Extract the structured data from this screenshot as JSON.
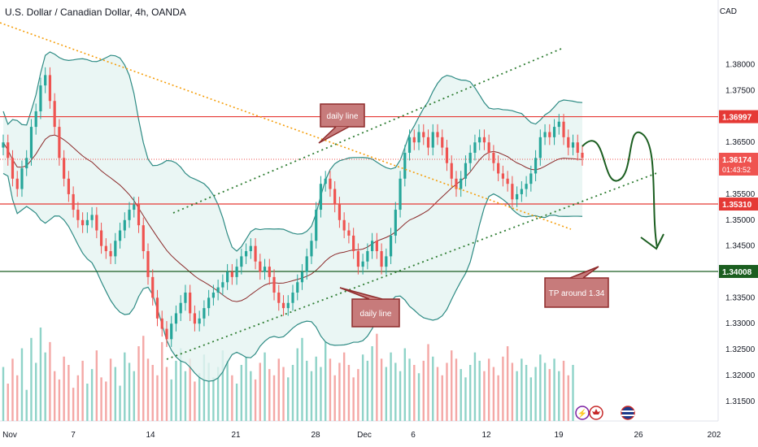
{
  "header": {
    "symbol_title": "U.S. Dollar / Canadian Dollar, 4h, OANDA",
    "currency": "CAD"
  },
  "colors": {
    "up": "#26a69a",
    "down": "#ef5350",
    "band": "#2e8b84",
    "band_fill": "#e5f4f1",
    "ma": "#8b2a2a",
    "resistance": "#e53935",
    "target": "#1b5e20",
    "downtrend": "#f59e0b",
    "channel": "#2e7d32",
    "callout_fill": "#c77b7b",
    "callout_border": "#8e2b2b"
  },
  "chart_data": {
    "type": "line",
    "ylim": [
      1.3112,
      1.3925
    ],
    "price_axis_ticks": [
      "1.38000",
      "1.37500",
      "1.37000",
      "1.36500",
      "1.36000",
      "1.35500",
      "1.35000",
      "1.34500",
      "1.34000",
      "1.33500",
      "1.33000",
      "1.32500",
      "1.32000",
      "1.31500"
    ],
    "x_tick_labels": [
      "Nov",
      "7",
      "14",
      "21",
      "28",
      "Dec",
      "6",
      "12",
      "19",
      "26",
      "202"
    ],
    "horizontal_levels": [
      {
        "label": "1.36997",
        "value": 1.36997,
        "color": "#e53935"
      },
      {
        "label": "1.35310",
        "value": 1.3531,
        "color": "#e53935"
      },
      {
        "label": "1.34008",
        "value": 1.34008,
        "color": "#1b5e20"
      }
    ],
    "current_price": {
      "label": "1.36174",
      "value": 1.36174,
      "countdown": "01:43:52"
    },
    "close_series": [
      1.365,
      1.362,
      1.358,
      1.356,
      1.36,
      1.362,
      1.368,
      1.371,
      1.376,
      1.378,
      1.373,
      1.368,
      1.362,
      1.358,
      1.355,
      1.352,
      1.35,
      1.349,
      1.35,
      1.351,
      1.348,
      1.345,
      1.344,
      1.343,
      1.346,
      1.348,
      1.35,
      1.352,
      1.353,
      1.349,
      1.344,
      1.339,
      1.335,
      1.331,
      1.329,
      1.327,
      1.33,
      1.332,
      1.334,
      1.336,
      1.332,
      1.33,
      1.331,
      1.333,
      1.335,
      1.336,
      1.337,
      1.338,
      1.34,
      1.339,
      1.341,
      1.343,
      1.344,
      1.345,
      1.342,
      1.34,
      1.341,
      1.339,
      1.336,
      1.334,
      1.333,
      1.334,
      1.336,
      1.338,
      1.34,
      1.343,
      1.346,
      1.352,
      1.357,
      1.358,
      1.356,
      1.353,
      1.35,
      1.348,
      1.347,
      1.344,
      1.341,
      1.342,
      1.344,
      1.346,
      1.344,
      1.341,
      1.343,
      1.347,
      1.352,
      1.358,
      1.363,
      1.366,
      1.365,
      1.367,
      1.366,
      1.364,
      1.367,
      1.366,
      1.364,
      1.361,
      1.358,
      1.356,
      1.358,
      1.361,
      1.363,
      1.365,
      1.366,
      1.365,
      1.363,
      1.361,
      1.359,
      1.358,
      1.357,
      1.354,
      1.355,
      1.356,
      1.357,
      1.359,
      1.362,
      1.366,
      1.367,
      1.366,
      1.368,
      1.369,
      1.366,
      1.364,
      1.365,
      1.363,
      1.362
    ],
    "volume_series": [
      26,
      18,
      30,
      22,
      35,
      15,
      40,
      28,
      45,
      33,
      38,
      24,
      20,
      31,
      27,
      16,
      22,
      29,
      18,
      25,
      34,
      21,
      19,
      30,
      26,
      17,
      33,
      28,
      24,
      36,
      41,
      30,
      27,
      22,
      38,
      26,
      20,
      29,
      35,
      24,
      30,
      19,
      23,
      32,
      28,
      21,
      26,
      34,
      29,
      22,
      18,
      27,
      31,
      24,
      20,
      28,
      33,
      25,
      22,
      30,
      26,
      21,
      27,
      35,
      40,
      29,
      24,
      31,
      26,
      38,
      30,
      22,
      28,
      33,
      27,
      21,
      25,
      32,
      29,
      36,
      42,
      30,
      26,
      33,
      28,
      24,
      35,
      30,
      27,
      23,
      29,
      37,
      31,
      26,
      22,
      28,
      34,
      30,
      25,
      21,
      27,
      33,
      29,
      24,
      30,
      26,
      22,
      31,
      36,
      28,
      24,
      30,
      27,
      21,
      26,
      32,
      28,
      25,
      30,
      24,
      29,
      22,
      27
    ],
    "annotations": {
      "daily_line_upper": "daily line",
      "daily_line_lower": "daily line",
      "tp_note": "TP around 1.34"
    }
  }
}
